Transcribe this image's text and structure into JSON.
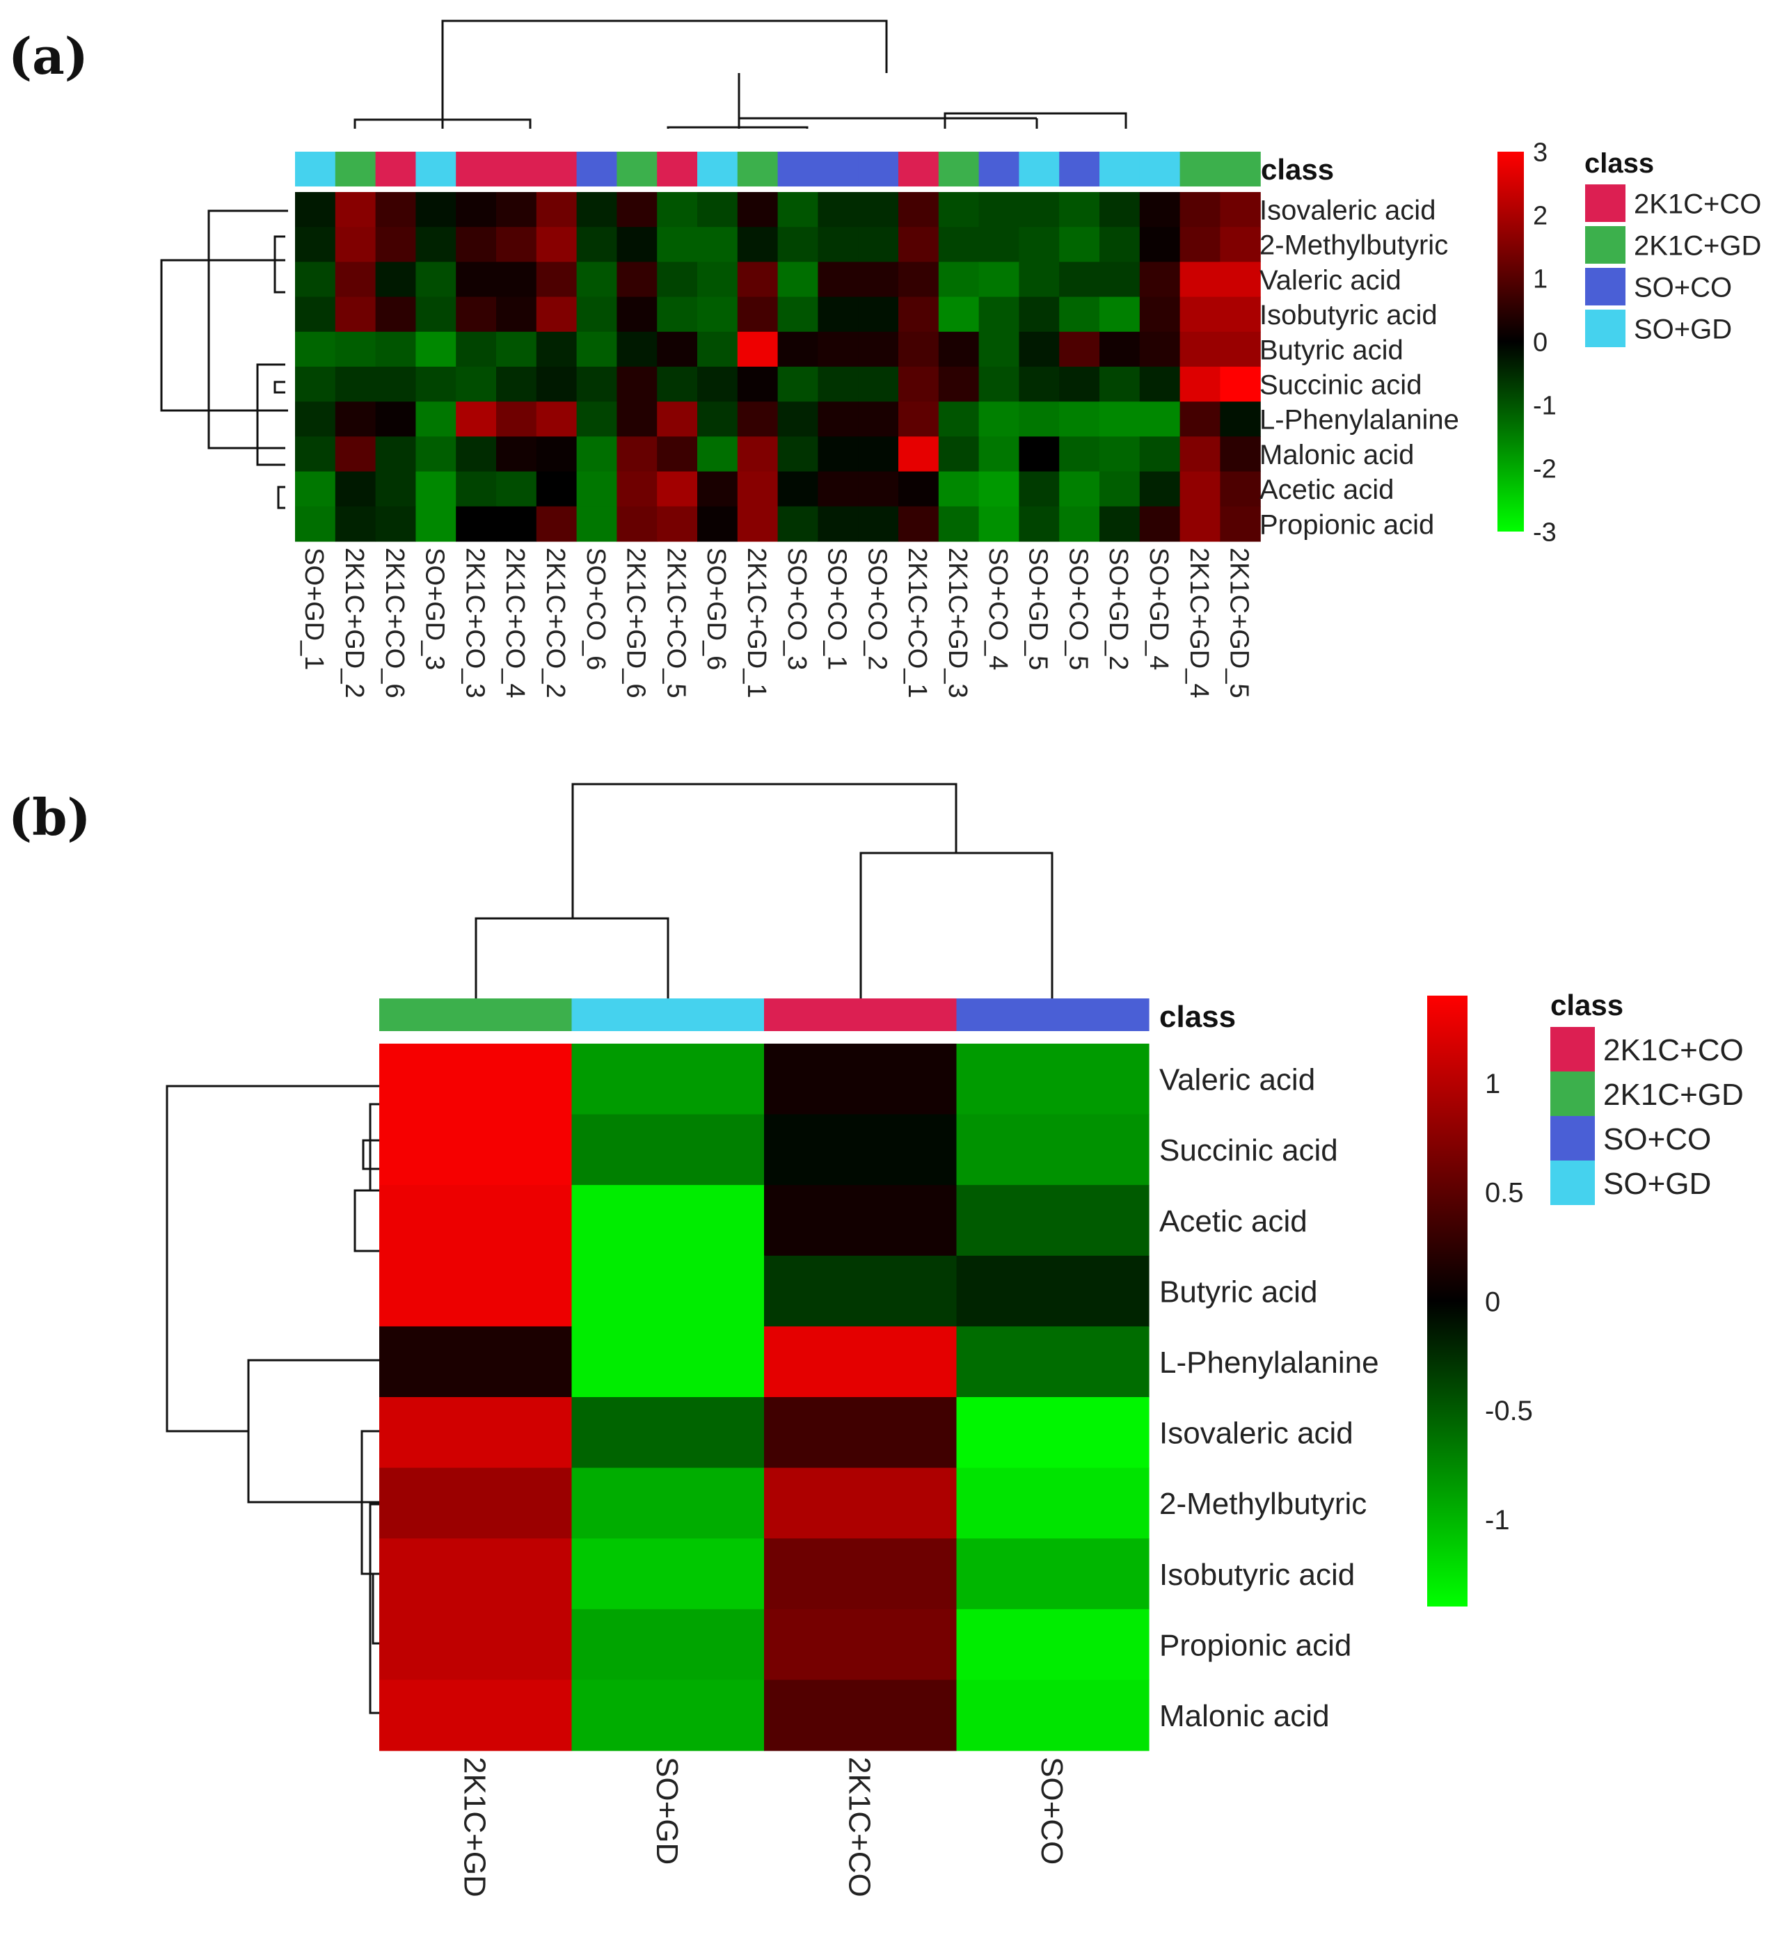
{
  "class_colors": {
    "2K1C+CO": "#dc1f52",
    "2K1C+GD": "#3cb04c",
    "SO+CO": "#4a5fd6",
    "SO+GD": "#45d2ee"
  },
  "chart_data": [
    {
      "type": "heatmap",
      "panel_label": "(a)",
      "class_header": "class",
      "legend_title": "class",
      "legend": [
        "2K1C+CO",
        "2K1C+GD",
        "SO+CO",
        "SO+GD"
      ],
      "colorbar_range": [
        -3,
        3
      ],
      "colorbar_ticks": [
        "3",
        "2",
        "1",
        "0",
        "-1",
        "-2",
        "-3"
      ],
      "colormap": [
        "#00ff00",
        "#000000",
        "#ff0000"
      ],
      "columns": [
        "SO+GD_1",
        "2K1C+GD_2",
        "2K1C+CO_6",
        "SO+GD_3",
        "2K1C+CO_3",
        "2K1C+CO_4",
        "2K1C+CO_2",
        "SO+CO_6",
        "2K1C+GD_6",
        "2K1C+CO_5",
        "SO+GD_6",
        "2K1C+GD_1",
        "SO+CO_3",
        "SO+CO_1",
        "SO+CO_2",
        "2K1C+CO_1",
        "2K1C+GD_3",
        "SO+CO_4",
        "SO+GD_5",
        "SO+CO_5",
        "SO+GD_2",
        "SO+GD_4",
        "2K1C+GD_4",
        "2K1C+GD_5"
      ],
      "column_classes": [
        "SO+GD",
        "2K1C+GD",
        "2K1C+CO",
        "SO+GD",
        "2K1C+CO",
        "2K1C+CO",
        "2K1C+CO",
        "SO+CO",
        "2K1C+GD",
        "2K1C+CO",
        "SO+GD",
        "2K1C+GD",
        "SO+CO",
        "SO+CO",
        "SO+CO",
        "2K1C+CO",
        "2K1C+GD",
        "SO+CO",
        "SO+GD",
        "SO+CO",
        "SO+GD",
        "SO+GD",
        "2K1C+GD",
        "2K1C+GD"
      ],
      "rows": [
        "Isovaleric acid",
        "2-Methylbutyric",
        "Valeric acid",
        "Isobutyric acid",
        "Butyric acid",
        "Succinic acid",
        "L-Phenylalanine",
        "Malonic acid",
        "Acetic acid",
        "Propionic acid"
      ],
      "values": [
        [
          -0.3,
          1.6,
          0.7,
          -0.2,
          0.2,
          0.4,
          1.3,
          -0.4,
          0.5,
          -1.0,
          -0.8,
          0.3,
          -1.0,
          -0.5,
          -0.5,
          0.8,
          -0.9,
          -0.8,
          -0.8,
          -1.0,
          -0.6,
          0.2,
          1.0,
          1.3
        ],
        [
          -0.4,
          1.5,
          0.8,
          -0.4,
          0.6,
          0.9,
          1.6,
          -0.6,
          -0.2,
          -1.1,
          -1.1,
          -0.3,
          -0.8,
          -0.6,
          -0.6,
          1.0,
          -0.8,
          -0.8,
          -0.9,
          -1.2,
          -0.8,
          0.1,
          1.1,
          1.5
        ],
        [
          -0.8,
          1.1,
          -0.3,
          -0.9,
          0.2,
          0.2,
          0.9,
          -1.0,
          0.6,
          -0.8,
          -1.0,
          1.1,
          -1.3,
          0.4,
          0.4,
          0.6,
          -1.3,
          -1.4,
          -0.9,
          -0.7,
          -0.7,
          0.6,
          2.4,
          2.4
        ],
        [
          -0.6,
          1.3,
          0.5,
          -0.8,
          0.6,
          0.3,
          1.5,
          -0.9,
          0.2,
          -1.0,
          -1.1,
          0.8,
          -1.0,
          -0.2,
          -0.2,
          0.9,
          -1.6,
          -1.0,
          -0.6,
          -1.2,
          -1.5,
          0.5,
          2.0,
          2.0
        ],
        [
          -1.2,
          -1.1,
          -1.0,
          -1.6,
          -0.8,
          -1.0,
          -0.4,
          -1.1,
          -0.3,
          0.2,
          -0.9,
          2.8,
          0.2,
          0.3,
          0.3,
          0.8,
          0.3,
          -1.0,
          -0.3,
          0.9,
          0.2,
          0.4,
          1.8,
          1.8
        ],
        [
          -0.8,
          -0.6,
          -0.6,
          -0.8,
          -0.9,
          -0.5,
          -0.3,
          -0.6,
          0.4,
          -0.6,
          -0.4,
          0.1,
          -0.9,
          -0.6,
          -0.6,
          1.0,
          0.5,
          -0.9,
          -0.5,
          -0.4,
          -0.8,
          -0.4,
          2.6,
          3.2
        ],
        [
          -0.5,
          0.3,
          0.1,
          -1.4,
          2.0,
          1.3,
          1.7,
          -0.8,
          0.4,
          1.6,
          -0.6,
          0.6,
          -0.4,
          0.3,
          0.3,
          1.1,
          -1.0,
          -1.5,
          -1.4,
          -1.5,
          -1.6,
          -1.6,
          0.8,
          -0.2
        ],
        [
          -0.7,
          1.0,
          -0.6,
          -1.1,
          -0.5,
          0.2,
          0.1,
          -1.3,
          1.2,
          0.7,
          -1.3,
          1.5,
          -0.6,
          -0.1,
          -0.1,
          2.7,
          -0.8,
          -1.4,
          0.0,
          -1.1,
          -1.2,
          -0.9,
          1.5,
          0.5
        ],
        [
          -1.4,
          -0.3,
          -0.6,
          -1.6,
          -0.8,
          -0.9,
          0.0,
          -1.4,
          1.3,
          1.9,
          0.3,
          1.6,
          -0.1,
          0.3,
          0.3,
          0.1,
          -1.6,
          -1.8,
          -0.7,
          -1.5,
          -1.1,
          -0.4,
          1.7,
          0.9
        ],
        [
          -1.3,
          -0.4,
          -0.5,
          -1.6,
          0.0,
          0.0,
          1.0,
          -1.4,
          1.2,
          1.4,
          0.1,
          1.6,
          -0.6,
          -0.3,
          -0.3,
          0.6,
          -1.2,
          -1.7,
          -0.8,
          -1.4,
          -0.5,
          0.5,
          1.7,
          1.0
        ]
      ]
    },
    {
      "type": "heatmap",
      "panel_label": "(b)",
      "class_header": "class",
      "legend_title": "class",
      "legend": [
        "2K1C+CO",
        "2K1C+GD",
        "SO+CO",
        "SO+GD"
      ],
      "colorbar_range": [
        -1.4,
        1.4
      ],
      "colorbar_ticks": [
        "1",
        "0.5",
        "0",
        "-0.5",
        "-1"
      ],
      "colormap": [
        "#00ff00",
        "#000000",
        "#ff0000"
      ],
      "columns": [
        "2K1C+GD",
        "SO+GD",
        "2K1C+CO",
        "SO+CO"
      ],
      "column_classes": [
        "2K1C+GD",
        "SO+GD",
        "2K1C+CO",
        "SO+CO"
      ],
      "rows": [
        "Valeric acid",
        "Succinic acid",
        "Acetic acid",
        "Butyric acid",
        "L-Phenylalanine",
        "Isovaleric acid",
        "2-Methylbutyric",
        "Isobutyric acid",
        "Propionic acid",
        "Malonic acid"
      ],
      "values": [
        [
          1.35,
          -0.85,
          0.1,
          -0.85
        ],
        [
          1.35,
          -0.7,
          -0.05,
          -0.8
        ],
        [
          1.3,
          -1.3,
          0.1,
          -0.5
        ],
        [
          1.3,
          -1.3,
          -0.3,
          -0.2
        ],
        [
          0.15,
          -1.3,
          1.25,
          -0.6
        ],
        [
          1.15,
          -0.55,
          0.35,
          -1.35
        ],
        [
          0.85,
          -0.95,
          0.95,
          -1.25
        ],
        [
          1.05,
          -1.1,
          0.6,
          -1.0
        ],
        [
          1.05,
          -0.9,
          0.65,
          -1.3
        ],
        [
          1.15,
          -0.95,
          0.45,
          -1.25
        ]
      ]
    }
  ]
}
